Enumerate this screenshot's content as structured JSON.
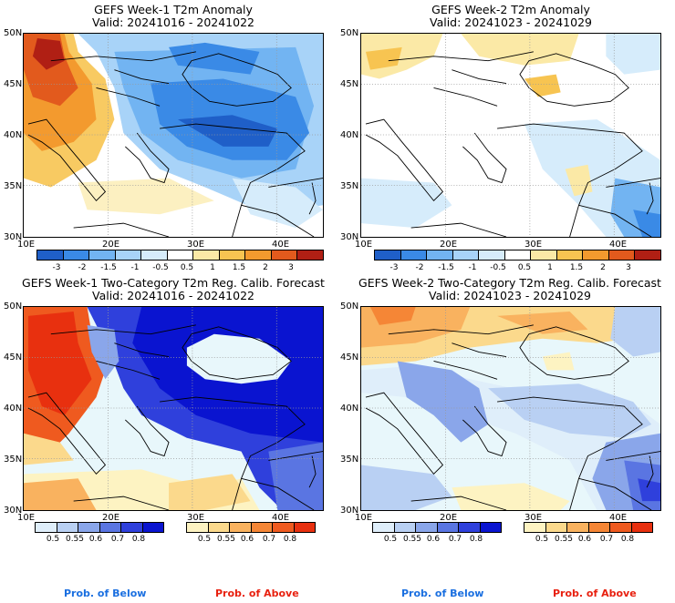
{
  "panels": {
    "tl": {
      "title_line1": "GEFS Week-1 T2m Anomaly",
      "title_line2": "Valid: 20241016 - 20241022"
    },
    "tr": {
      "title_line1": "GEFS Week-2 T2m Anomaly",
      "title_line2": "Valid: 20241023 - 20241029"
    },
    "bl": {
      "title_line1": "GEFS Week-1 Two-Category T2m Reg. Calib. Forecast",
      "title_line2": "Valid: 20241016 - 20241022"
    },
    "br": {
      "title_line1": "GEFS Week-2 Two-Category T2m Reg. Calib. Forecast",
      "title_line2": "Valid: 20241023 - 20241029"
    }
  },
  "axes": {
    "y_ticks": [
      "50N",
      "45N",
      "40N",
      "35N",
      "30N"
    ],
    "x_ticks": [
      "10E",
      "20E",
      "30E",
      "40E"
    ]
  },
  "anomaly_colorbar": {
    "labels": [
      "-3",
      "-2",
      "-1.5",
      "-1",
      "-0.5",
      "0.5",
      "1",
      "1.5",
      "2",
      "3"
    ],
    "colors": [
      "#1f5fc8",
      "#3a8ae6",
      "#72b4f2",
      "#a8d3f8",
      "#d6ecfb",
      "#ffffff",
      "#fbe9a6",
      "#f7c451",
      "#f39a2e",
      "#e25a1d",
      "#b01f14"
    ]
  },
  "prob_below_colorbar": {
    "labels": [
      "0.5",
      "0.55",
      "0.6",
      "0.7",
      "0.8"
    ],
    "colors": [
      "#dfeefa",
      "#b9d0f3",
      "#8aa6ea",
      "#5a75e2",
      "#2f40dc",
      "#0a14d0"
    ]
  },
  "prob_above_colorbar": {
    "labels": [
      "0.5",
      "0.55",
      "0.6",
      "0.7",
      "0.8"
    ],
    "colors": [
      "#fdf3c2",
      "#fbd98c",
      "#f9b25f",
      "#f58636",
      "#ef5a1f",
      "#e8300f"
    ]
  },
  "captions": {
    "below_left": "Prob. of Below",
    "above_left": "Prob. of Above",
    "below_right": "Prob. of Below",
    "above_right": "Prob. of Above"
  },
  "colors": {
    "below_label": "#1a6fe0",
    "above_label": "#e8200f",
    "grid": "#9a9a9a",
    "sea_prob": "#e8f7fb"
  }
}
